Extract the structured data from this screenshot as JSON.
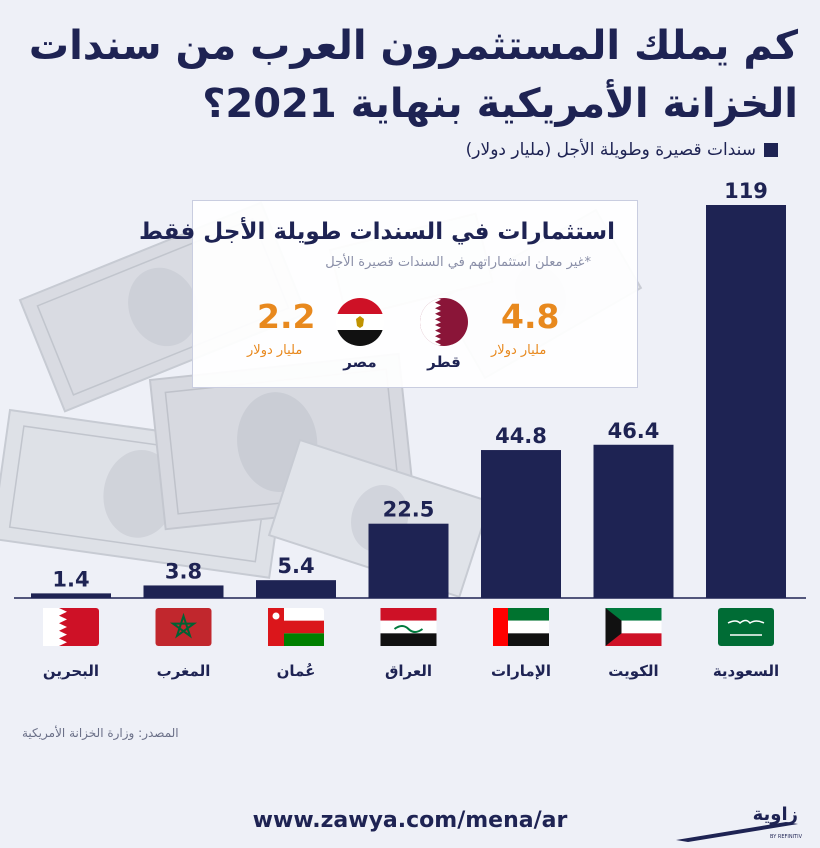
{
  "title": {
    "line1": "كم يملك المستثمرون العرب من سندات",
    "line2": "الخزانة الأمريكية بنهاية 2021؟"
  },
  "legend": {
    "label": "سندات قصيرة وطويلة الأجل (مليار دولار)"
  },
  "callout": {
    "title": "استثمارات في السندات طويلة الأجل فقط",
    "note": "*غير معلن استثماراتهم في السندات قصيرة الأجل",
    "items": [
      {
        "country": "قطر",
        "value": "4.8",
        "unit": "مليار دولار"
      },
      {
        "country": "مصر",
        "value": "2.2",
        "unit": "مليار دولار"
      }
    ]
  },
  "chart_data": {
    "type": "bar",
    "categories": [
      "البحرين",
      "المغرب",
      "عُمان",
      "العراق",
      "الإمارات",
      "الكويت",
      "السعودية"
    ],
    "values": [
      1.4,
      3.8,
      5.4,
      22.5,
      44.8,
      46.4,
      119
    ],
    "value_labels": [
      "1.4",
      "3.8",
      "5.4",
      "22.5",
      "44.8",
      "46.4",
      "119"
    ],
    "flags": [
      "bahrain-flag",
      "morocco-flag",
      "oman-flag",
      "iraq-flag",
      "uae-flag",
      "kuwait-flag",
      "saudi-flag"
    ],
    "ylim": [
      0,
      119
    ],
    "grid": false,
    "bar_color": "#1e2353"
  },
  "source": "المصدر: وزارة الخزانة الأمريكية",
  "url": "www.zawya.com/mena/ar",
  "logo": {
    "name": "زاوية",
    "tagline": "BY REFINITIV"
  },
  "colors": {
    "primary": "#1e2353",
    "accent": "#e8891e",
    "background": "#eef0f7"
  }
}
